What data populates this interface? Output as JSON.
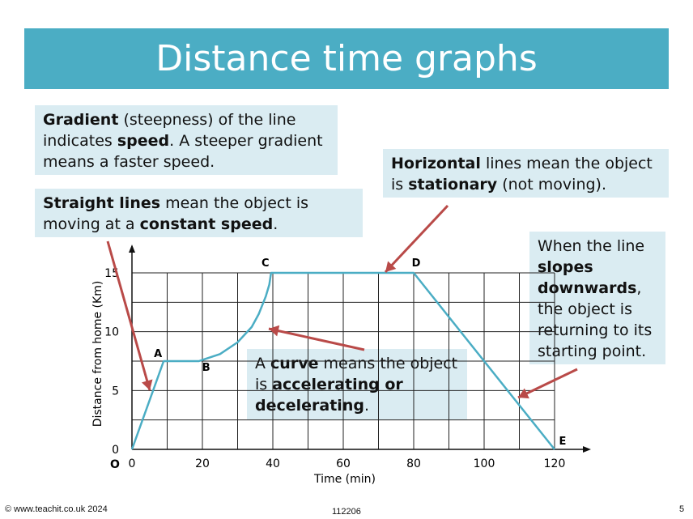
{
  "slide": {
    "title": "Distance time graphs",
    "footer_left": "© www.teachit.co.uk 2024",
    "footer_center": "112206",
    "page_number": "5"
  },
  "notes": {
    "gradient": [
      {
        "t": "Gradient",
        "b": true
      },
      {
        "t": " (steepness) of the line indicates ",
        "b": false
      },
      {
        "t": "speed",
        "b": true
      },
      {
        "t": ". A steeper gradient means a faster speed.",
        "b": false
      }
    ],
    "straight": [
      {
        "t": "Straight lines",
        "b": true
      },
      {
        "t": " mean the object is moving at a ",
        "b": false
      },
      {
        "t": "constant speed",
        "b": true
      },
      {
        "t": ".",
        "b": false
      }
    ],
    "horizontal": [
      {
        "t": "Horizontal",
        "b": true
      },
      {
        "t": " lines mean the object is ",
        "b": false
      },
      {
        "t": "stationary",
        "b": true
      },
      {
        "t": " (not moving).",
        "b": false
      }
    ],
    "slopes": [
      {
        "t": "When the line ",
        "b": false
      },
      {
        "t": "slopes downwards",
        "b": true
      },
      {
        "t": ", the object is returning to its starting point.",
        "b": false
      }
    ],
    "curve": [
      {
        "t": "A ",
        "b": false
      },
      {
        "t": "curve",
        "b": true
      },
      {
        "t": " means the object is ",
        "b": false
      },
      {
        "t": "accelerating or decelerating",
        "b": true
      },
      {
        "t": ".",
        "b": false
      }
    ]
  },
  "colors": {
    "title_bg": "#4badc4",
    "note_bg": "#daecf2",
    "line": "#4badc4",
    "arrow": "#b94a48"
  },
  "chart_data": {
    "type": "line",
    "xlabel": "Time (min)",
    "ylabel": "Distance from home (Km)",
    "xlim": [
      0,
      120
    ],
    "ylim": [
      0,
      15
    ],
    "x_ticks": [
      0,
      20,
      40,
      60,
      80,
      100,
      120
    ],
    "y_ticks": [
      0,
      5,
      10,
      15
    ],
    "grid": true,
    "origin_label": "O",
    "series": [
      {
        "points": [
          [
            0,
            0
          ],
          [
            9,
            7.5
          ],
          [
            19,
            7.5
          ],
          [
            25,
            8.1
          ],
          [
            30,
            9.1
          ],
          [
            34,
            10.4
          ],
          [
            36,
            11.5
          ],
          [
            38,
            13
          ],
          [
            39,
            14
          ],
          [
            39.5,
            15
          ],
          [
            80,
            15
          ],
          [
            120,
            0
          ]
        ],
        "color": "#4badc4"
      }
    ],
    "point_labels": [
      {
        "label": "A",
        "x": 9,
        "y": 7.5
      },
      {
        "label": "B",
        "x": 19,
        "y": 7.5
      },
      {
        "label": "C",
        "x": 39.5,
        "y": 15
      },
      {
        "label": "D",
        "x": 80,
        "y": 15
      },
      {
        "label": "E",
        "x": 120,
        "y": 0
      }
    ]
  }
}
